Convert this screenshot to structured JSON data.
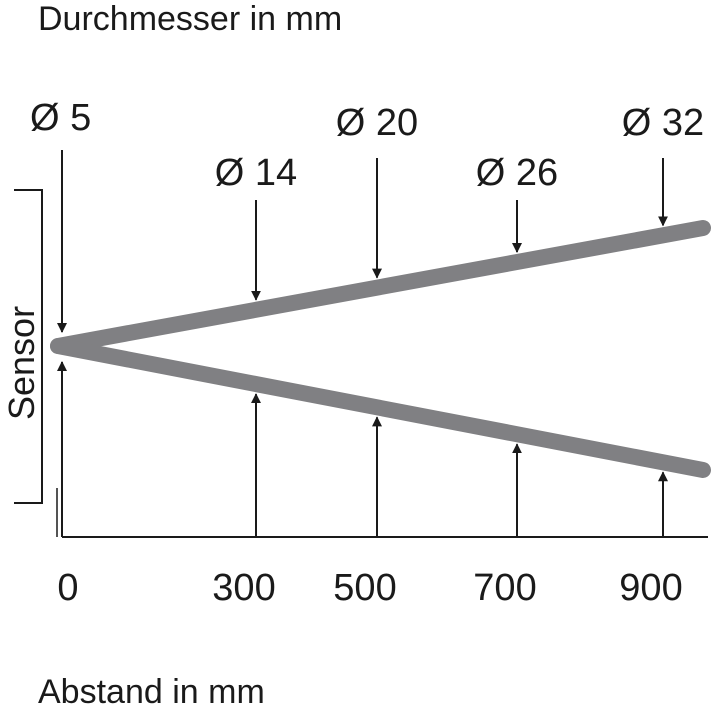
{
  "title": "Durchmesser in mm",
  "x_axis_label": "Abstand in mm",
  "sensor_label": "Sensor",
  "colors": {
    "beam": "#808083",
    "line": "#1a1a1a"
  },
  "chart_data": {
    "type": "line",
    "xlabel": "Abstand in mm",
    "x_ticks": [
      "0",
      "300",
      "500",
      "700",
      "900"
    ],
    "markers": [
      {
        "distance": 0,
        "label": "Ø 5",
        "diameter": 5
      },
      {
        "distance": 300,
        "label": "Ø 14",
        "diameter": 14
      },
      {
        "distance": 500,
        "label": "Ø 20",
        "diameter": 20
      },
      {
        "distance": 700,
        "label": "Ø 26",
        "diameter": 26
      },
      {
        "distance": 900,
        "label": "Ø 32",
        "diameter": 32
      }
    ]
  }
}
